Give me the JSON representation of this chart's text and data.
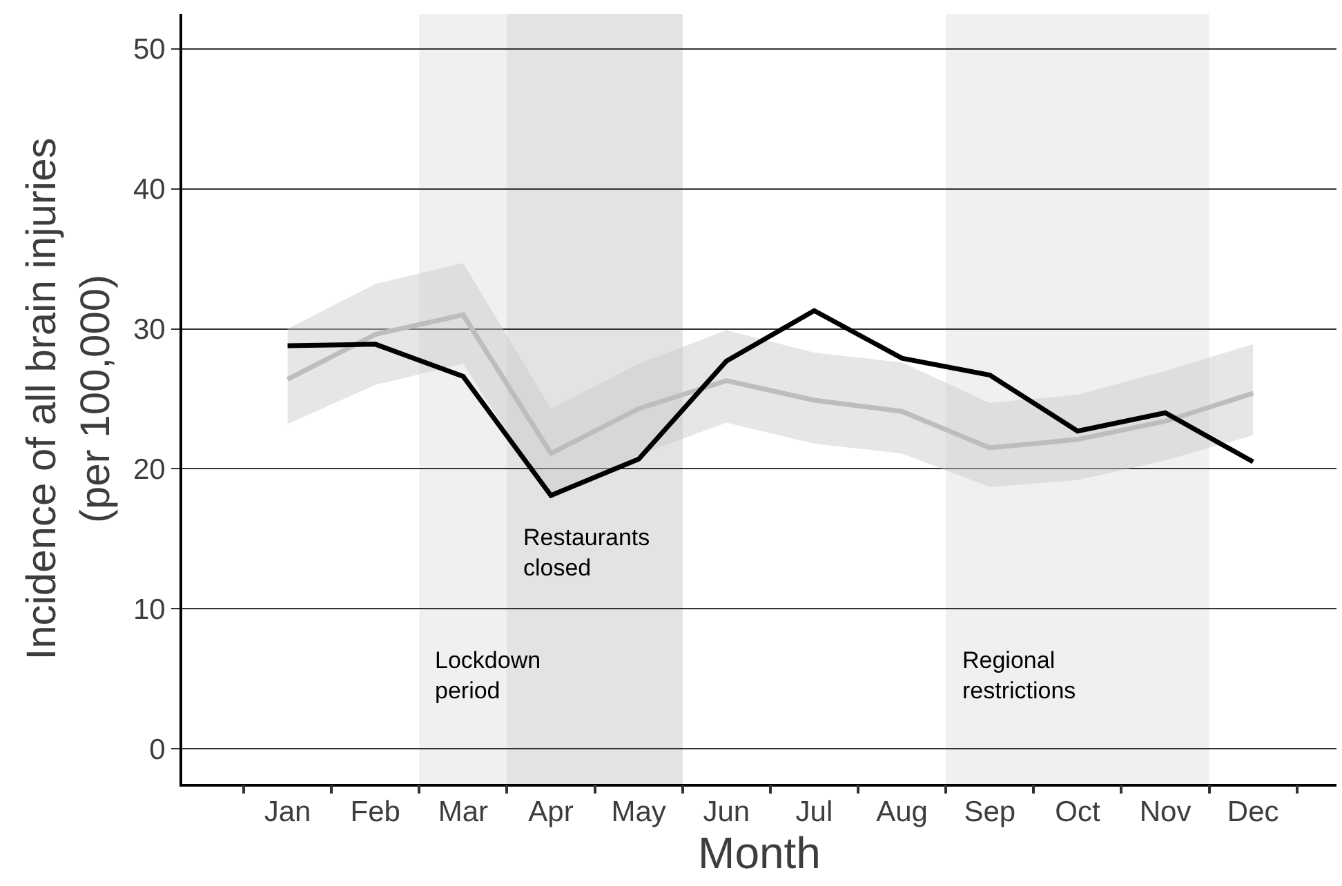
{
  "chart_data": {
    "type": "line",
    "xlabel": "Month",
    "ylabel": "Incidence of all brain injuries\n(per 100,000)",
    "categories": [
      "Jan",
      "Feb",
      "Mar",
      "Apr",
      "May",
      "Jun",
      "Jul",
      "Aug",
      "Sep",
      "Oct",
      "Nov",
      "Dec"
    ],
    "series": [
      {
        "color": "#bdbdbd",
        "values": [
          26.4,
          29.6,
          31.0,
          21.1,
          24.3,
          26.3,
          24.9,
          24.1,
          21.5,
          22.1,
          23.4,
          25.4
        ],
        "lower": [
          23.2,
          26.0,
          27.5,
          17.8,
          21.0,
          23.3,
          21.8,
          21.1,
          18.7,
          19.2,
          20.6,
          22.4
        ],
        "upper": [
          30.0,
          33.2,
          34.7,
          24.3,
          27.5,
          29.9,
          28.3,
          27.6,
          24.7,
          25.3,
          27.0,
          28.9
        ]
      },
      {
        "color": "#000000",
        "values": [
          28.8,
          28.9,
          26.6,
          18.1,
          20.7,
          27.7,
          31.3,
          27.9,
          26.7,
          22.7,
          24.0,
          20.5
        ]
      }
    ],
    "ylim": [
      -2.5,
      52.5
    ],
    "yticks": [
      0,
      10,
      20,
      30,
      40,
      50
    ],
    "bands": [
      {
        "axis": "x",
        "from": "Mar",
        "to": "May",
        "label": "Lockdown\nperiod",
        "color": "#f0f0f0"
      },
      {
        "axis": "x",
        "from": "Apr",
        "to": "May",
        "label": "Restaurants\nclosed",
        "color": "#e3e3e3"
      },
      {
        "axis": "x",
        "from": "Sep",
        "to": "Nov",
        "label": "Regional\nrestrictions",
        "color": "#f0f0f0"
      }
    ],
    "grid": "y",
    "marker": "none",
    "line_style": "solid"
  }
}
